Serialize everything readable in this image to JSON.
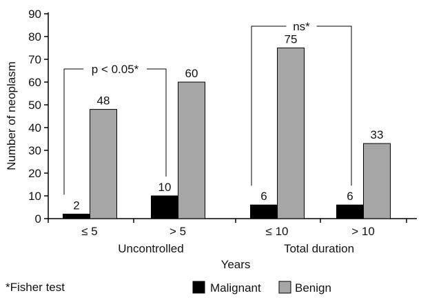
{
  "chart_data": {
    "type": "bar",
    "categories": [
      "≤ 5",
      "> 5",
      "≤ 10",
      "> 10"
    ],
    "groups": [
      {
        "label": "Uncontrolled",
        "categories": [
          "≤ 5",
          "> 5"
        ]
      },
      {
        "label": "Total duration",
        "categories": [
          "≤ 10",
          "> 10"
        ]
      }
    ],
    "series": [
      {
        "name": "Malignant",
        "values": [
          2,
          10,
          6,
          6
        ],
        "color": "#000000"
      },
      {
        "name": "Benign",
        "values": [
          48,
          60,
          75,
          33
        ],
        "color": "#a6a6a6"
      }
    ],
    "xlabel": "Years",
    "ylabel": "Number of neoplasm",
    "ylim": [
      0,
      90
    ],
    "yticks": [
      0,
      10,
      20,
      30,
      40,
      50,
      60,
      70,
      80,
      90
    ],
    "grid": false,
    "legend_position": "bottom-right",
    "annotations": [
      {
        "text": "p < 0.05*",
        "from_category": 0,
        "to_category": 1
      },
      {
        "text": "ns*",
        "from_category": 2,
        "to_category": 3
      }
    ],
    "footnote": "*Fisher test"
  }
}
